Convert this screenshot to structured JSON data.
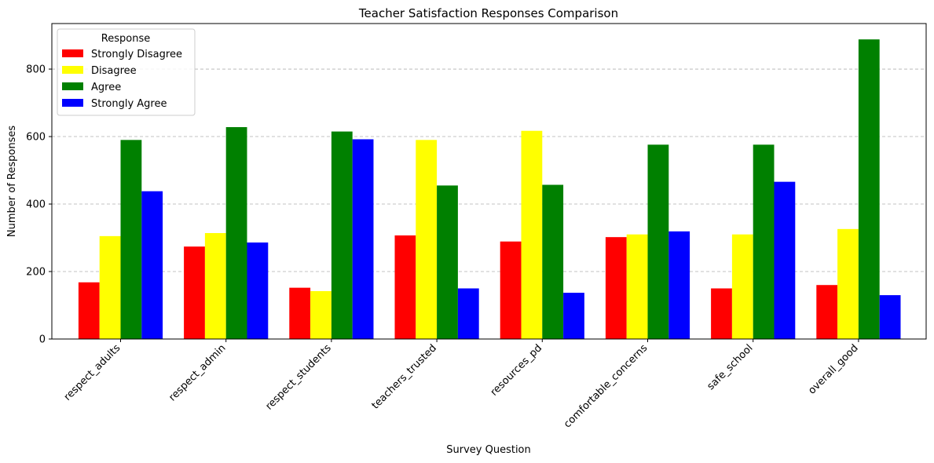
{
  "chart_data": {
    "type": "bar",
    "title": "Teacher Satisfaction Responses Comparison",
    "xlabel": "Survey Question",
    "ylabel": "Number of Responses",
    "categories": [
      "respect_adults",
      "respect_admin",
      "respect_students",
      "teachers_trusted",
      "resources_pd",
      "comfortable_concerns",
      "safe_school",
      "overall_good"
    ],
    "series": [
      {
        "name": "Strongly Disagree",
        "color": "#ff0000",
        "values": [
          168,
          274,
          152,
          307,
          289,
          302,
          150,
          160
        ]
      },
      {
        "name": "Disagree",
        "color": "#ffff00",
        "values": [
          305,
          314,
          142,
          590,
          617,
          310,
          310,
          326
        ]
      },
      {
        "name": "Agree",
        "color": "#008000",
        "values": [
          590,
          628,
          615,
          455,
          457,
          576,
          576,
          888
        ]
      },
      {
        "name": "Strongly Agree",
        "color": "#0000ff",
        "values": [
          438,
          286,
          592,
          150,
          137,
          319,
          466,
          130
        ]
      }
    ],
    "ylim": [
      0,
      935
    ],
    "yticks": [
      0,
      200,
      400,
      600,
      800
    ],
    "grid": "y-dashed",
    "legend": {
      "title": "Response",
      "placement": "top-left"
    }
  }
}
